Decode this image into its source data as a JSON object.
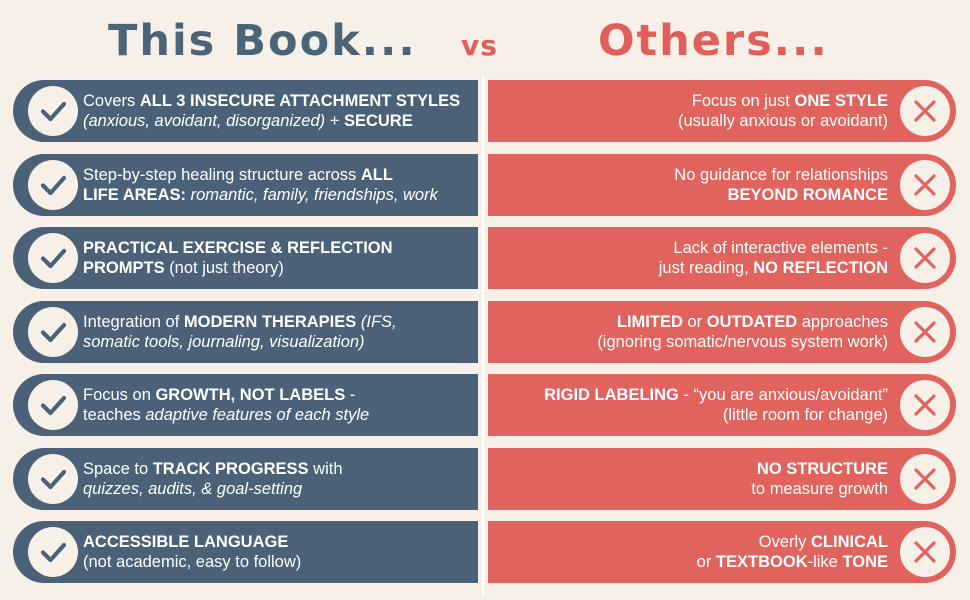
{
  "header": {
    "left_title": "This Book...",
    "vs": "vs",
    "right_title": "Others..."
  },
  "colors": {
    "background": "#f6f0e8",
    "left_pill": "#4a6178",
    "right_pill": "#e0635d",
    "check": "#4a6178",
    "cross": "#e0635d"
  },
  "icons": {
    "left": "check-icon",
    "right": "x-icon"
  },
  "rows": [
    {
      "left": [
        [
          {
            "t": "Covers "
          },
          {
            "t": "ALL 3 INSECURE ATTACHMENT STYLES",
            "s": "b"
          }
        ],
        [
          {
            "t": "(anxious, avoidant, disorganized)",
            "s": "i"
          },
          {
            "t": " + "
          },
          {
            "t": "SECURE",
            "s": "b"
          }
        ]
      ],
      "right": [
        [
          {
            "t": "Focus on just "
          },
          {
            "t": "ONE STYLE",
            "s": "b"
          }
        ],
        [
          {
            "t": "(usually anxious or avoidant)"
          }
        ]
      ]
    },
    {
      "left": [
        [
          {
            "t": "Step-by-step healing structure across "
          },
          {
            "t": "ALL",
            "s": "b"
          }
        ],
        [
          {
            "t": "LIFE AREAS:",
            "s": "b"
          },
          {
            "t": " "
          },
          {
            "t": "romantic, family, friendships, work",
            "s": "i"
          }
        ]
      ],
      "right": [
        [
          {
            "t": "No guidance for relationships"
          }
        ],
        [
          {
            "t": "BEYOND ROMANCE",
            "s": "b"
          }
        ]
      ]
    },
    {
      "left": [
        [
          {
            "t": "PRACTICAL EXERCISE & REFLECTION",
            "s": "b"
          }
        ],
        [
          {
            "t": "PROMPTS",
            "s": "b"
          },
          {
            "t": " (not just theory)"
          }
        ]
      ],
      "right": [
        [
          {
            "t": "Lack of interactive elements -"
          }
        ],
        [
          {
            "t": "just reading, "
          },
          {
            "t": "NO REFLECTION",
            "s": "b"
          }
        ]
      ]
    },
    {
      "left": [
        [
          {
            "t": "Integration of "
          },
          {
            "t": "MODERN THERAPIES",
            "s": "b"
          },
          {
            "t": " "
          },
          {
            "t": "(IFS,",
            "s": "i"
          }
        ],
        [
          {
            "t": "somatic tools, journaling, visualization)",
            "s": "i"
          }
        ]
      ],
      "right": [
        [
          {
            "t": "LIMITED",
            "s": "b"
          },
          {
            "t": " or "
          },
          {
            "t": "OUTDATED",
            "s": "b"
          },
          {
            "t": " approaches"
          }
        ],
        [
          {
            "t": "(ignoring somatic/nervous system work)"
          }
        ]
      ]
    },
    {
      "left": [
        [
          {
            "t": "Focus on "
          },
          {
            "t": "GROWTH, NOT LABELS",
            "s": "b"
          },
          {
            "t": " -"
          }
        ],
        [
          {
            "t": "teaches "
          },
          {
            "t": "adaptive features of each style",
            "s": "i"
          }
        ]
      ],
      "right": [
        [
          {
            "t": "RIGID LABELING",
            "s": "b"
          },
          {
            "t": " - “you are anxious/avoidant”"
          }
        ],
        [
          {
            "t": "(little room for change)"
          }
        ]
      ]
    },
    {
      "left": [
        [
          {
            "t": "Space to "
          },
          {
            "t": "TRACK PROGRESS",
            "s": "b"
          },
          {
            "t": " with"
          }
        ],
        [
          {
            "t": "quizzes, audits, & goal-setting",
            "s": "i"
          }
        ]
      ],
      "right": [
        [
          {
            "t": "NO STRUCTURE",
            "s": "b"
          }
        ],
        [
          {
            "t": "to measure growth"
          }
        ]
      ]
    },
    {
      "left": [
        [
          {
            "t": "ACCESSIBLE LANGUAGE",
            "s": "b"
          }
        ],
        [
          {
            "t": "(not academic, easy to follow)"
          }
        ]
      ],
      "right": [
        [
          {
            "t": "Overly "
          },
          {
            "t": "CLINICAL",
            "s": "b"
          }
        ],
        [
          {
            "t": "or "
          },
          {
            "t": "TEXTBOOK",
            "s": "b"
          },
          {
            "t": "-like "
          },
          {
            "t": "TONE",
            "s": "b"
          }
        ]
      ]
    }
  ]
}
